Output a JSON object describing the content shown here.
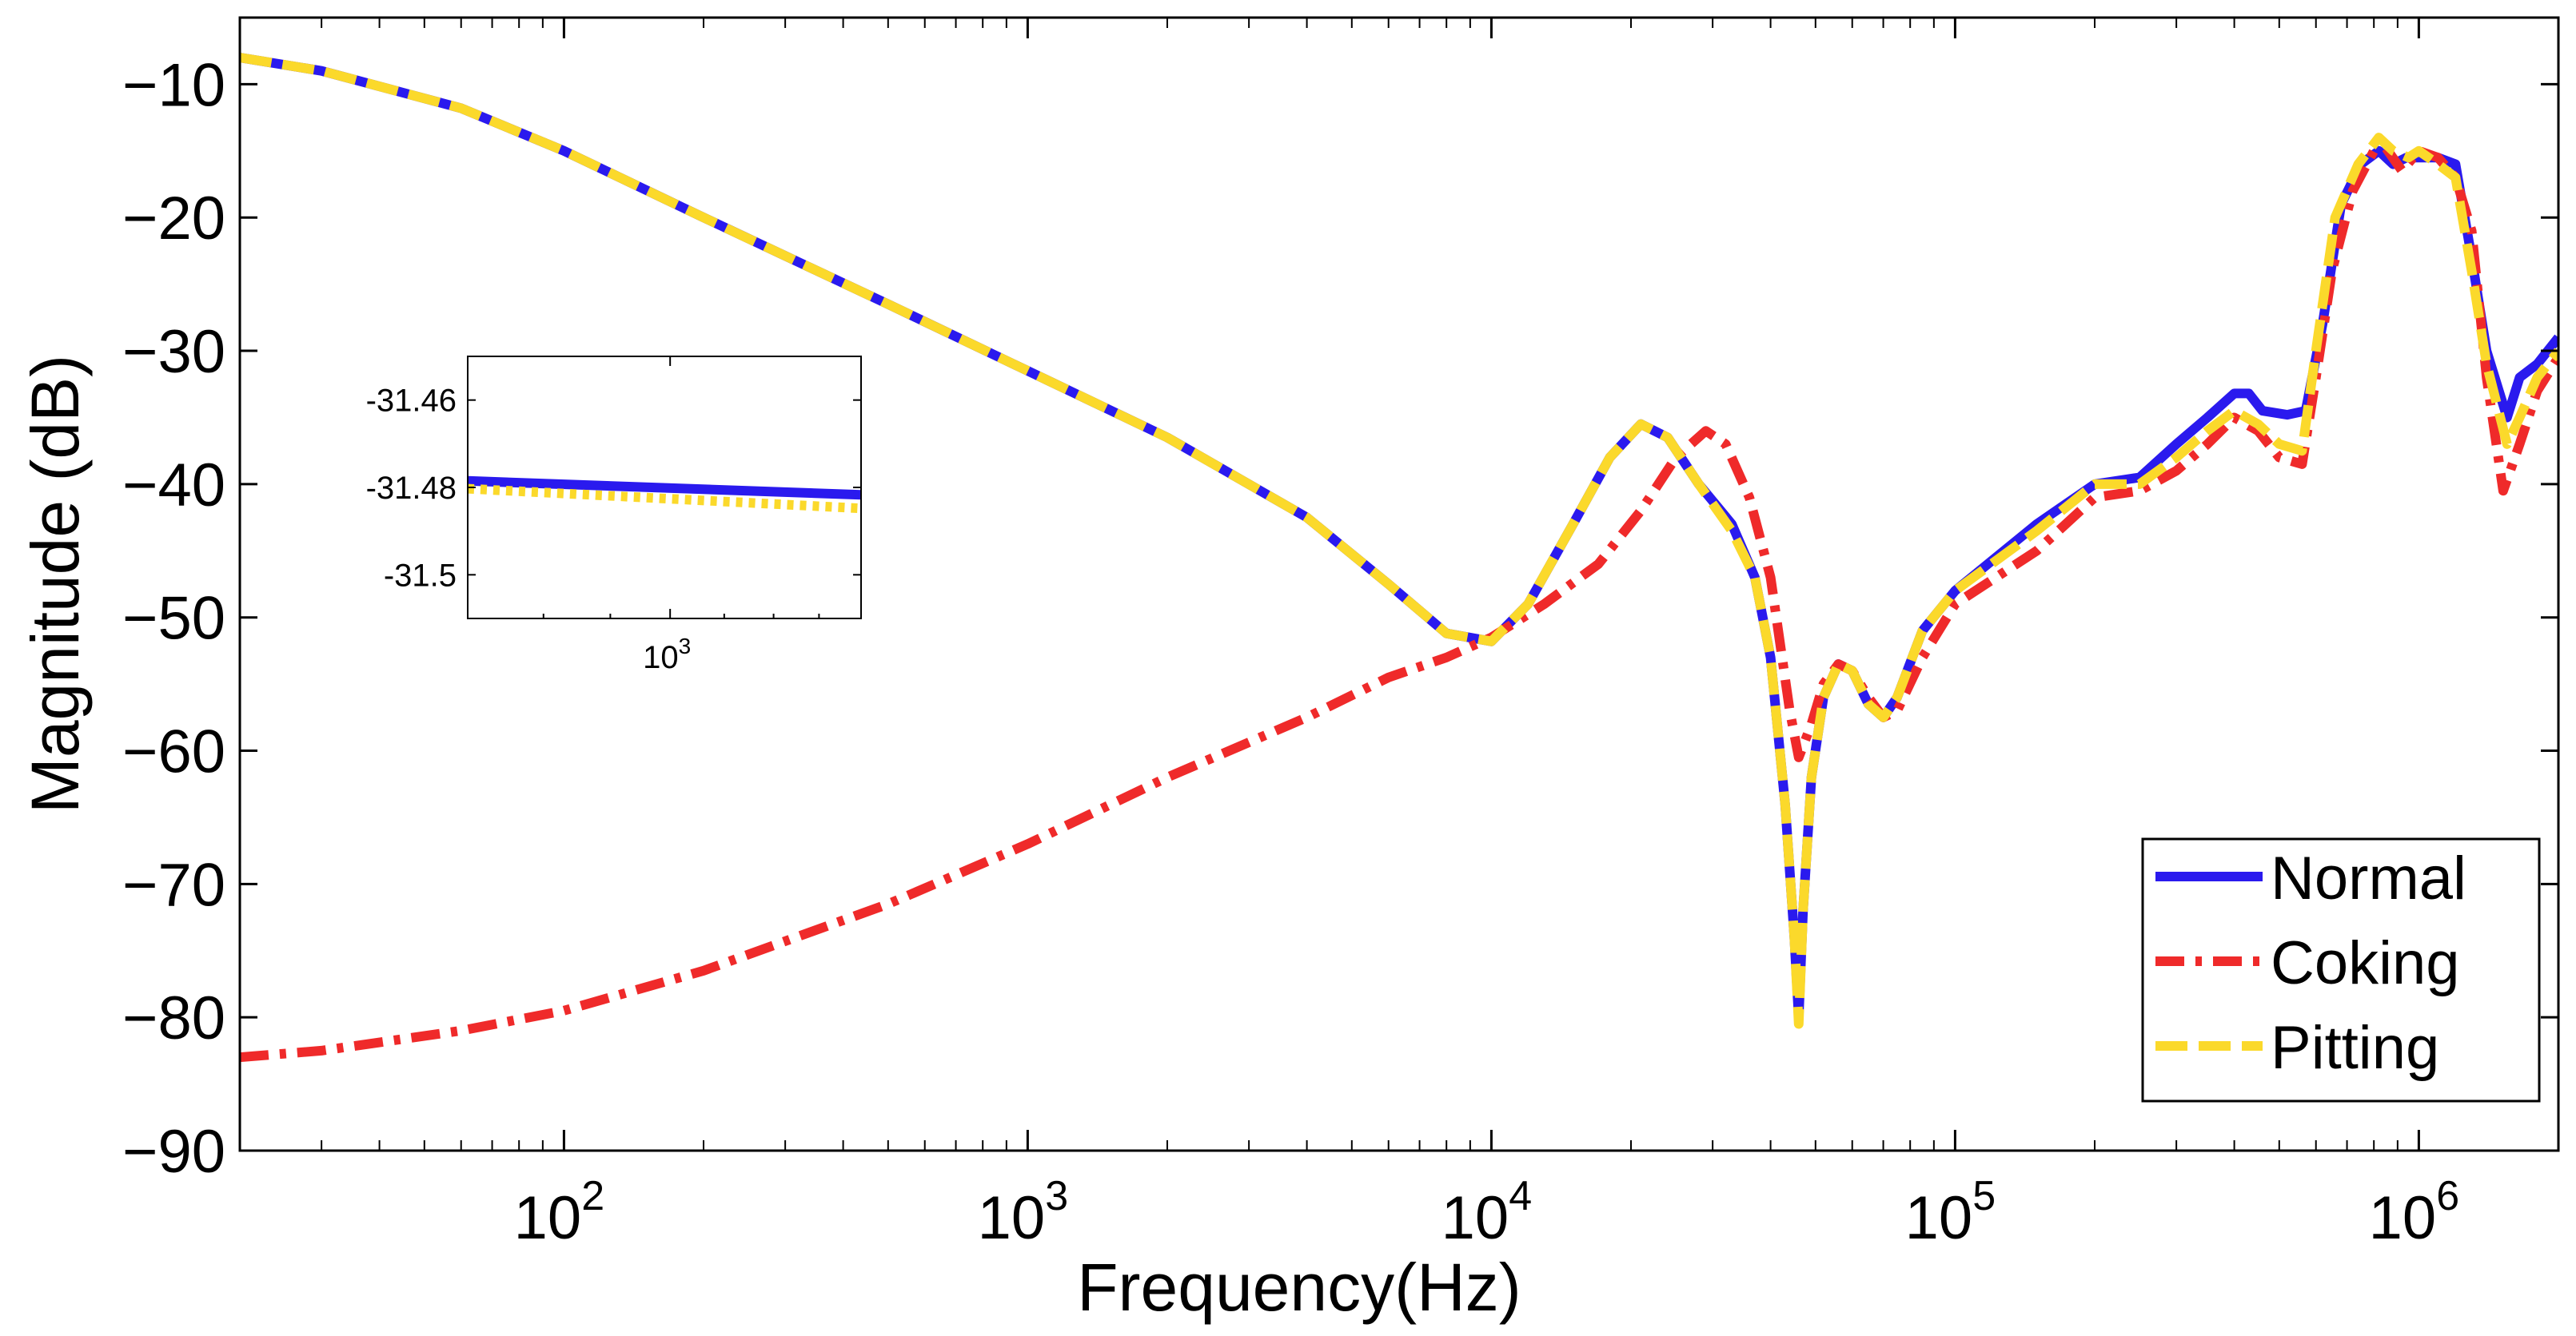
{
  "chart_data": {
    "type": "line",
    "title": "",
    "xlabel": "Frequency(Hz)",
    "ylabel": "Magnitude (dB)",
    "xscale": "log",
    "xlim": [
      20,
      2000000
    ],
    "ylim": [
      -90,
      -5
    ],
    "grid": false,
    "legend_position": "bottom-right",
    "x_ticks": [
      {
        "value": 100,
        "base": "10",
        "exp": "2"
      },
      {
        "value": 1000,
        "base": "10",
        "exp": "3"
      },
      {
        "value": 10000,
        "base": "10",
        "exp": "4"
      },
      {
        "value": 100000,
        "base": "10",
        "exp": "5"
      },
      {
        "value": 1000000,
        "base": "10",
        "exp": "6"
      }
    ],
    "y_ticks": [
      {
        "value": -10,
        "label": "−10"
      },
      {
        "value": -20,
        "label": "−20"
      },
      {
        "value": -30,
        "label": "−30"
      },
      {
        "value": -40,
        "label": "−40"
      },
      {
        "value": -50,
        "label": "−50"
      },
      {
        "value": -60,
        "label": "−60"
      },
      {
        "value": -70,
        "label": "−70"
      },
      {
        "value": -80,
        "label": "−80"
      },
      {
        "value": -90,
        "label": "−90"
      }
    ],
    "series": [
      {
        "name": "Normal",
        "color": "#2a1aee",
        "style": "solid",
        "points": [
          [
            20,
            -8
          ],
          [
            30,
            -9
          ],
          [
            60,
            -11.8
          ],
          [
            100,
            -15
          ],
          [
            200,
            -20
          ],
          [
            500,
            -26.5
          ],
          [
            1000,
            -31.5
          ],
          [
            2000,
            -36.5
          ],
          [
            4000,
            -42.5
          ],
          [
            6000,
            -47.5
          ],
          [
            8000,
            -51.2
          ],
          [
            10000,
            -51.8
          ],
          [
            12000,
            -49
          ],
          [
            15000,
            -43
          ],
          [
            18000,
            -38
          ],
          [
            21000,
            -35.5
          ],
          [
            24000,
            -36.5
          ],
          [
            28000,
            -40
          ],
          [
            33000,
            -43
          ],
          [
            37000,
            -47
          ],
          [
            40000,
            -53
          ],
          [
            43000,
            -64
          ],
          [
            45000,
            -74
          ],
          [
            46000,
            -80
          ],
          [
            47000,
            -72
          ],
          [
            49000,
            -62
          ],
          [
            52000,
            -56
          ],
          [
            56000,
            -53.5
          ],
          [
            60000,
            -54
          ],
          [
            65000,
            -56.5
          ],
          [
            70000,
            -57.5
          ],
          [
            75000,
            -56
          ],
          [
            85000,
            -51
          ],
          [
            100000,
            -48
          ],
          [
            150000,
            -43
          ],
          [
            200000,
            -40
          ],
          [
            250000,
            -39.5
          ],
          [
            300000,
            -37
          ],
          [
            350000,
            -35
          ],
          [
            400000,
            -33.2
          ],
          [
            430000,
            -33.2
          ],
          [
            460000,
            -34.5
          ],
          [
            520000,
            -34.8
          ],
          [
            570000,
            -34.5
          ],
          [
            620000,
            -28
          ],
          [
            680000,
            -19
          ],
          [
            750000,
            -16
          ],
          [
            820000,
            -15
          ],
          [
            880000,
            -16
          ],
          [
            940000,
            -15.5
          ],
          [
            1000000,
            -15.5
          ],
          [
            1100000,
            -15.5
          ],
          [
            1200000,
            -16
          ],
          [
            1300000,
            -23
          ],
          [
            1400000,
            -30
          ],
          [
            1550000,
            -35
          ],
          [
            1650000,
            -32
          ],
          [
            1800000,
            -31
          ],
          [
            2000000,
            -29
          ]
        ]
      },
      {
        "name": "Coking",
        "color": "#ef2a2a",
        "style": "dashdot",
        "points": [
          [
            20,
            -83
          ],
          [
            30,
            -82.5
          ],
          [
            60,
            -81
          ],
          [
            100,
            -79.5
          ],
          [
            200,
            -76.5
          ],
          [
            500,
            -71.5
          ],
          [
            1000,
            -67
          ],
          [
            2000,
            -62
          ],
          [
            4000,
            -57.5
          ],
          [
            6000,
            -54.5
          ],
          [
            8000,
            -53
          ],
          [
            10000,
            -51.5
          ],
          [
            13000,
            -49
          ],
          [
            17000,
            -46
          ],
          [
            21000,
            -42
          ],
          [
            25000,
            -38
          ],
          [
            29000,
            -36
          ],
          [
            32000,
            -37
          ],
          [
            36000,
            -41
          ],
          [
            40000,
            -47
          ],
          [
            44000,
            -57
          ],
          [
            46000,
            -60.5
          ],
          [
            49000,
            -58
          ],
          [
            52000,
            -55
          ],
          [
            56000,
            -53.5
          ],
          [
            60000,
            -54
          ],
          [
            65000,
            -56
          ],
          [
            70000,
            -57.5
          ],
          [
            75000,
            -57
          ],
          [
            85000,
            -53
          ],
          [
            100000,
            -49
          ],
          [
            150000,
            -45
          ],
          [
            200000,
            -41
          ],
          [
            250000,
            -40.5
          ],
          [
            300000,
            -39
          ],
          [
            350000,
            -37
          ],
          [
            400000,
            -35
          ],
          [
            450000,
            -36
          ],
          [
            500000,
            -38
          ],
          [
            560000,
            -38.5
          ],
          [
            600000,
            -32
          ],
          [
            650000,
            -24
          ],
          [
            720000,
            -18
          ],
          [
            800000,
            -15
          ],
          [
            850000,
            -14.8
          ],
          [
            920000,
            -16.5
          ],
          [
            1000000,
            -15
          ],
          [
            1100000,
            -15.5
          ],
          [
            1200000,
            -17
          ],
          [
            1300000,
            -21
          ],
          [
            1400000,
            -32
          ],
          [
            1520000,
            -40.5
          ],
          [
            1650000,
            -37
          ],
          [
            1800000,
            -33
          ],
          [
            2000000,
            -30.5
          ]
        ]
      },
      {
        "name": "Pitting",
        "color": "#fbd92b",
        "style": "dashed",
        "points": [
          [
            20,
            -8
          ],
          [
            30,
            -9
          ],
          [
            60,
            -11.8
          ],
          [
            100,
            -15
          ],
          [
            200,
            -20
          ],
          [
            500,
            -26.5
          ],
          [
            1000,
            -31.5
          ],
          [
            2000,
            -36.5
          ],
          [
            4000,
            -42.5
          ],
          [
            6000,
            -47.5
          ],
          [
            8000,
            -51.2
          ],
          [
            10000,
            -51.8
          ],
          [
            12000,
            -49
          ],
          [
            15000,
            -43
          ],
          [
            18000,
            -38
          ],
          [
            21000,
            -35.5
          ],
          [
            24000,
            -36.5
          ],
          [
            28000,
            -40
          ],
          [
            33000,
            -43.5
          ],
          [
            37000,
            -47
          ],
          [
            40000,
            -53
          ],
          [
            43000,
            -64
          ],
          [
            45000,
            -74
          ],
          [
            46000,
            -80.5
          ],
          [
            47000,
            -72
          ],
          [
            49000,
            -62
          ],
          [
            52000,
            -56
          ],
          [
            56000,
            -53.5
          ],
          [
            60000,
            -54
          ],
          [
            65000,
            -56.5
          ],
          [
            70000,
            -57.5
          ],
          [
            75000,
            -56
          ],
          [
            85000,
            -51
          ],
          [
            100000,
            -48
          ],
          [
            150000,
            -43.5
          ],
          [
            200000,
            -40
          ],
          [
            250000,
            -40
          ],
          [
            300000,
            -38
          ],
          [
            350000,
            -36
          ],
          [
            400000,
            -34.5
          ],
          [
            450000,
            -35.5
          ],
          [
            500000,
            -37
          ],
          [
            560000,
            -37.5
          ],
          [
            600000,
            -30
          ],
          [
            660000,
            -20
          ],
          [
            740000,
            -16
          ],
          [
            820000,
            -14
          ],
          [
            880000,
            -15
          ],
          [
            950000,
            -15.5
          ],
          [
            1000000,
            -15
          ],
          [
            1100000,
            -16
          ],
          [
            1200000,
            -17
          ],
          [
            1300000,
            -24
          ],
          [
            1400000,
            -31
          ],
          [
            1550000,
            -37
          ],
          [
            1650000,
            -35
          ],
          [
            1800000,
            -32
          ],
          [
            2000000,
            -30
          ]
        ]
      }
    ],
    "inset": {
      "x_tick": {
        "value": 1000,
        "base": "10",
        "exp": "3"
      },
      "xlim": [
        700,
        1400
      ],
      "ylim": [
        -31.51,
        -31.45
      ],
      "y_ticks": [
        {
          "value": -31.46,
          "label": "-31.46"
        },
        {
          "value": -31.48,
          "label": "-31.48"
        },
        {
          "value": -31.5,
          "label": "-31.5"
        }
      ],
      "series": [
        {
          "name": "Normal",
          "color": "#2a1aee",
          "style": "solid",
          "points": [
            [
              700,
              -31.4785
            ],
            [
              1400,
              -31.4817
            ]
          ]
        },
        {
          "name": "Pitting",
          "color": "#fbd92b",
          "style": "dotted",
          "points": [
            [
              700,
              -31.4803
            ],
            [
              1400,
              -31.4848
            ]
          ]
        }
      ]
    }
  }
}
